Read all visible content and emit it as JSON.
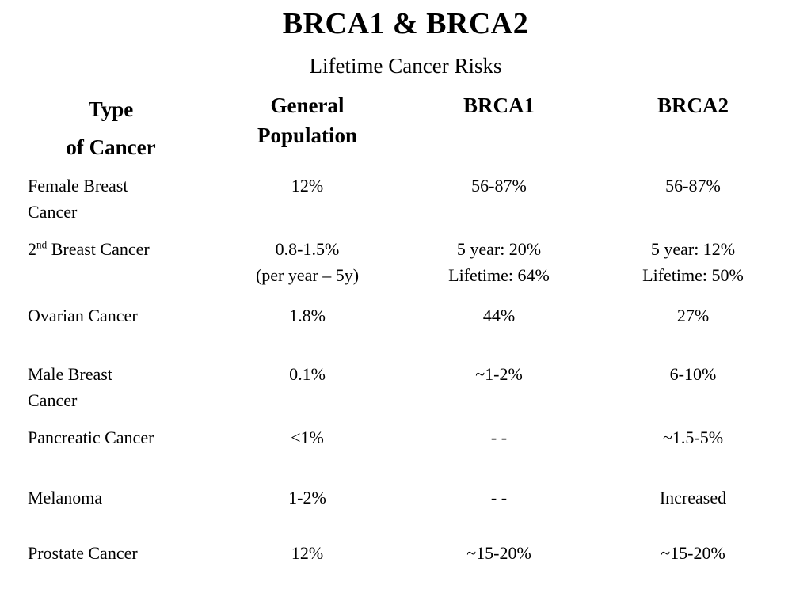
{
  "slide": {
    "title": "BRCA1 & BRCA2",
    "subtitle": "Lifetime Cancer Risks"
  },
  "table": {
    "headers": [
      {
        "line1": "Type",
        "line2": "of Cancer"
      },
      {
        "line1": "General",
        "line2": "Population"
      },
      {
        "line1": "BRCA1",
        "line2": ""
      },
      {
        "line1": "BRCA2",
        "line2": ""
      }
    ],
    "rows": [
      {
        "name": "female-breast-cancer",
        "cells": [
          [
            "Female Breast",
            "Cancer"
          ],
          [
            "12%"
          ],
          [
            "56-87%"
          ],
          [
            "56-87%"
          ]
        ]
      },
      {
        "name": "second-breast-cancer",
        "cells": [
          [
            [
              {
                "t": "2"
              },
              {
                "t": "nd",
                "sup": true
              },
              {
                "t": " Breast Cancer"
              }
            ]
          ],
          [
            "0.8-1.5%",
            "(per year – 5y)"
          ],
          [
            "5 year: 20%",
            "Lifetime: 64%"
          ],
          [
            "5 year: 12%",
            "Lifetime: 50%"
          ]
        ]
      },
      {
        "name": "ovarian-cancer",
        "cells": [
          [
            "Ovarian Cancer"
          ],
          [
            "1.8%"
          ],
          [
            "44%"
          ],
          [
            "27%"
          ]
        ]
      },
      {
        "name": "male-breast-cancer",
        "cells": [
          [
            "Male Breast",
            "Cancer"
          ],
          [
            "0.1%"
          ],
          [
            "~1-2%"
          ],
          [
            "6-10%"
          ]
        ]
      },
      {
        "name": "pancreatic-cancer",
        "cells": [
          [
            "Pancreatic Cancer"
          ],
          [
            "<1%"
          ],
          [
            "- -"
          ],
          [
            "~1.5-5%"
          ]
        ]
      },
      {
        "name": "melanoma",
        "cells": [
          [
            "Melanoma"
          ],
          [
            "1-2%"
          ],
          [
            "- -"
          ],
          [
            "Increased"
          ]
        ]
      },
      {
        "name": "prostate-cancer",
        "cells": [
          [
            "Prostate Cancer"
          ],
          [
            "12%"
          ],
          [
            "~15-20%"
          ],
          [
            "~15-20%"
          ]
        ]
      }
    ]
  },
  "chart_data": {
    "type": "table",
    "title": "BRCA1 & BRCA2 — Lifetime Cancer Risks",
    "columns": [
      "Type of Cancer",
      "General Population",
      "BRCA1",
      "BRCA2"
    ],
    "rows": [
      [
        "Female Breast Cancer",
        "12%",
        "56-87%",
        "56-87%"
      ],
      [
        "2nd Breast Cancer",
        "0.8-1.5% (per year – 5y)",
        "5 year: 20% / Lifetime: 64%",
        "5 year: 12% / Lifetime: 50%"
      ],
      [
        "Ovarian Cancer",
        "1.8%",
        "44%",
        "27%"
      ],
      [
        "Male Breast Cancer",
        "0.1%",
        "~1-2%",
        "6-10%"
      ],
      [
        "Pancreatic Cancer",
        "<1%",
        "- -",
        "~1.5-5%"
      ],
      [
        "Melanoma",
        "1-2%",
        "- -",
        "Increased"
      ],
      [
        "Prostate Cancer",
        "12%",
        "~15-20%",
        "~15-20%"
      ]
    ]
  }
}
